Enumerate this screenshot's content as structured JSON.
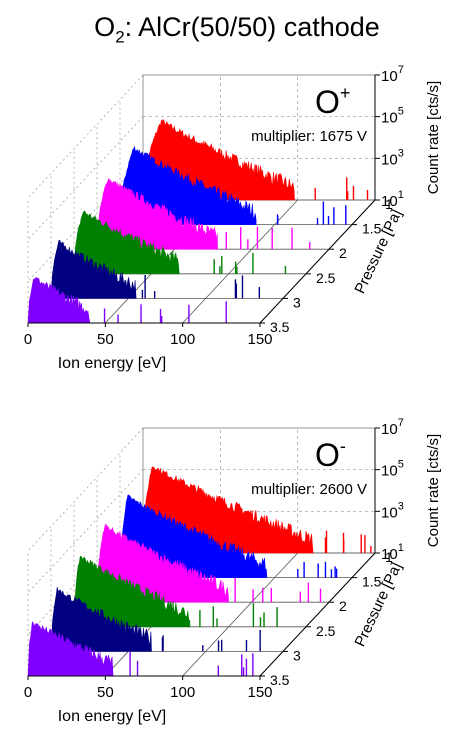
{
  "title": {
    "prefix": "O",
    "sub": "2",
    "rest": ": AlCr(50/50) cathode"
  },
  "chart_data": [
    {
      "type": "3d-waterfall",
      "panel": "top",
      "ion": {
        "base": "O",
        "sup": "+"
      },
      "annotation": "multiplier: 1675 V",
      "xlabel": "Ion energy [eV]",
      "ylabel": "Pressure [Pa]",
      "zlabel": "Count rate [cts/s]",
      "x_ticks": [
        "0",
        "50",
        "100",
        "150"
      ],
      "y_ticks": [
        "1",
        "1.5",
        "2",
        "2.5",
        "3",
        "3.5"
      ],
      "z_ticks": [
        {
          "b": "10",
          "e": "1"
        },
        {
          "b": "10",
          "e": "3"
        },
        {
          "b": "10",
          "e": "5"
        },
        {
          "b": "10",
          "e": "7"
        }
      ],
      "xlim": [
        0,
        150
      ],
      "zlim_log10": [
        1,
        7
      ],
      "zscale": "log",
      "series": [
        {
          "pressure": 1.0,
          "color": "#ff0000",
          "peak_energy": 12,
          "peak_log10": 4.8,
          "tail_end_energy": 98
        },
        {
          "pressure": 1.5,
          "color": "#0000ff",
          "peak_energy": 9,
          "peak_log10": 4.7,
          "tail_end_energy": 88
        },
        {
          "pressure": 2.0,
          "color": "#ff00ff",
          "peak_energy": 7,
          "peak_log10": 4.4,
          "tail_end_energy": 78
        },
        {
          "pressure": 2.5,
          "color": "#008000",
          "peak_energy": 6,
          "peak_log10": 4.0,
          "tail_end_energy": 68
        },
        {
          "pressure": 3.0,
          "color": "#000080",
          "peak_energy": 5,
          "peak_log10": 3.7,
          "tail_end_energy": 55
        },
        {
          "pressure": 3.5,
          "color": "#8000ff",
          "peak_energy": 4,
          "peak_log10": 3.2,
          "tail_end_energy": 40
        }
      ]
    },
    {
      "type": "3d-waterfall",
      "panel": "bottom",
      "ion": {
        "base": "O",
        "sup": "-"
      },
      "annotation": "multiplier: 2600 V",
      "xlabel": "Ion energy [eV]",
      "ylabel": "Pressure [Pa]",
      "zlabel": "Count rate [cts/s]",
      "x_ticks": [
        "0",
        "50",
        "100",
        "150"
      ],
      "y_ticks": [
        "1",
        "1.5",
        "2",
        "2.5",
        "3",
        "3.5"
      ],
      "z_ticks": [
        {
          "b": "10",
          "e": "1"
        },
        {
          "b": "10",
          "e": "3"
        },
        {
          "b": "10",
          "e": "5"
        },
        {
          "b": "10",
          "e": "7"
        }
      ],
      "xlim": [
        0,
        150
      ],
      "zlim_log10": [
        1,
        7
      ],
      "zscale": "log",
      "series": [
        {
          "pressure": 1.0,
          "color": "#ff0000",
          "peak_energy": 6,
          "peak_log10": 5.2,
          "tail_end_energy": 110
        },
        {
          "pressure": 1.5,
          "color": "#0000ff",
          "peak_energy": 5,
          "peak_log10": 4.9,
          "tail_end_energy": 95
        },
        {
          "pressure": 2.0,
          "color": "#ff00ff",
          "peak_energy": 5,
          "peak_log10": 4.7,
          "tail_end_energy": 85
        },
        {
          "pressure": 2.5,
          "color": "#008000",
          "peak_energy": 4,
          "peak_log10": 4.4,
          "tail_end_energy": 75
        },
        {
          "pressure": 3.0,
          "color": "#000080",
          "peak_energy": 4,
          "peak_log10": 4.0,
          "tail_end_energy": 65
        },
        {
          "pressure": 3.5,
          "color": "#8000ff",
          "peak_energy": 3,
          "peak_log10": 3.6,
          "tail_end_energy": 55
        }
      ]
    }
  ]
}
